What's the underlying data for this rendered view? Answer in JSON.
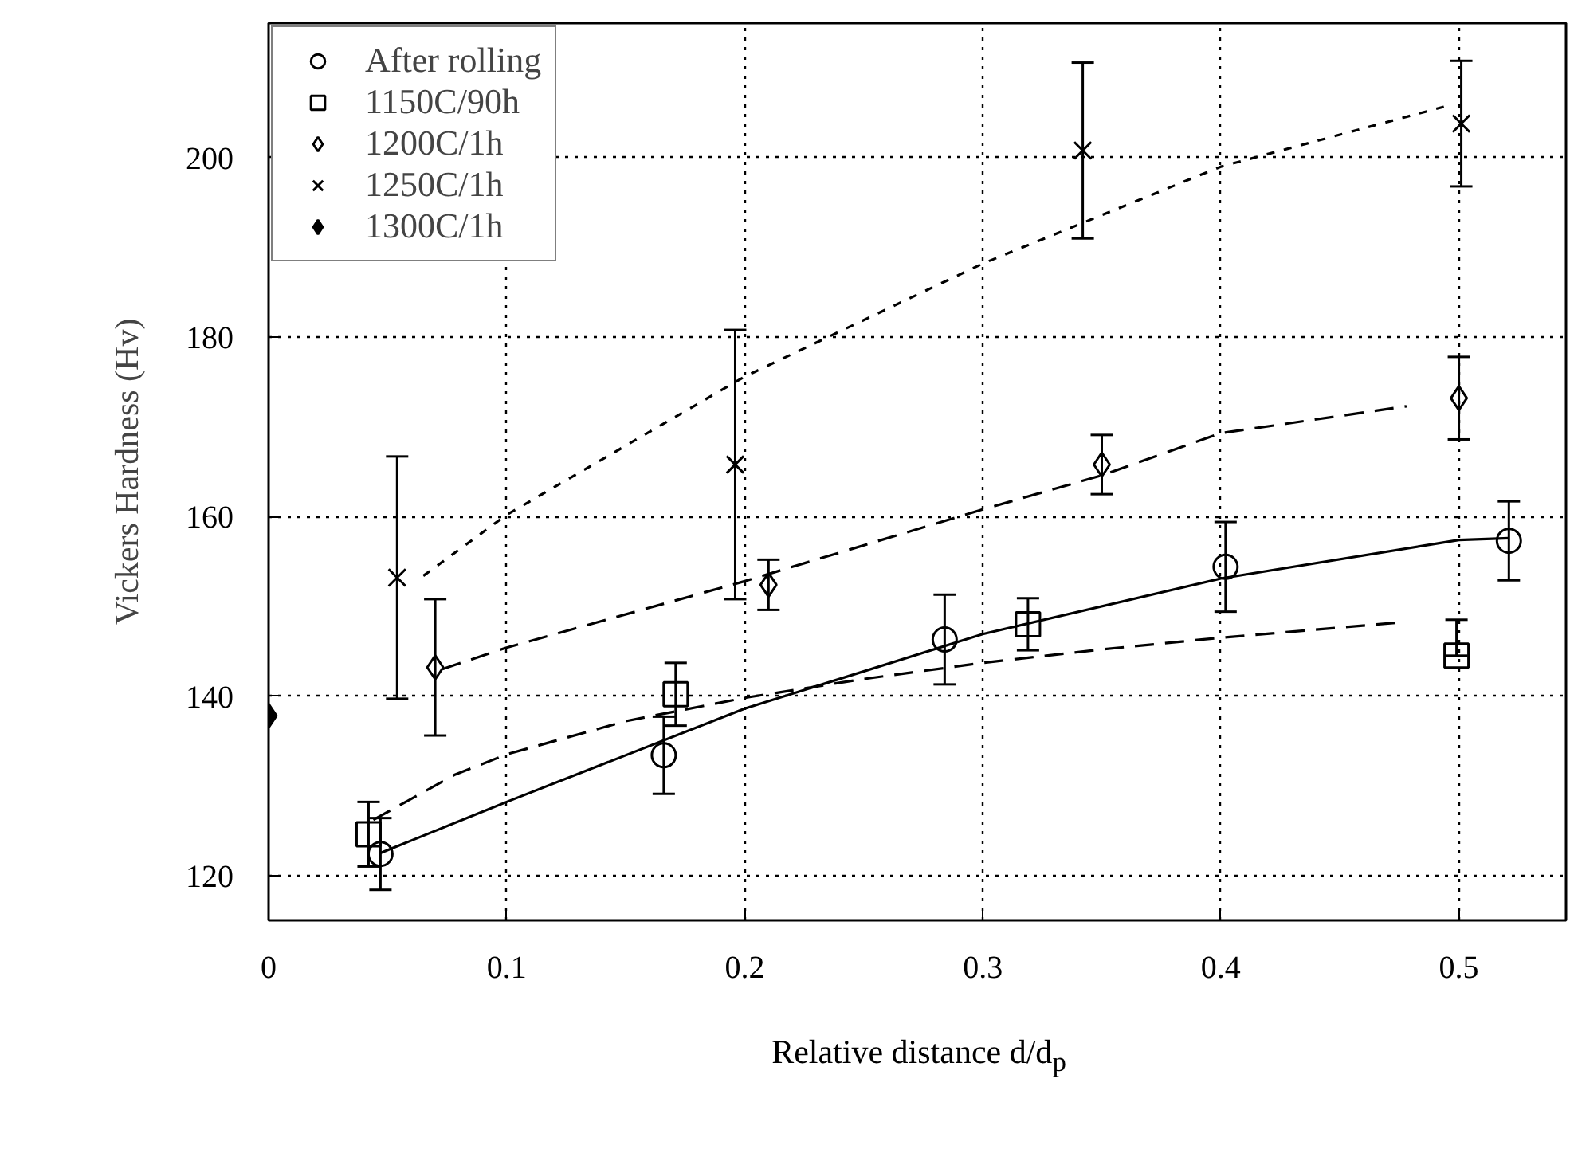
{
  "chart_data": {
    "type": "scatter",
    "xlabel": "Relative distance d/d$_{p}$",
    "ylabel": "Vickers Hardness (Hv)",
    "xlim": [
      0,
      0.545
    ],
    "ylim": [
      115,
      215
    ],
    "xticks": [
      0,
      0.1,
      0.2,
      0.3,
      0.4,
      0.5
    ],
    "yticks": [
      120,
      140,
      160,
      180,
      200
    ],
    "grid": true,
    "legend": "top left",
    "series": [
      {
        "name": "After rolling",
        "marker": "circle",
        "x": [
          0.047,
          0.166,
          0.284,
          0.402,
          0.521
        ],
        "values": [
          122.4,
          133.4,
          146.3,
          154.4,
          157.3
        ],
        "errors": [
          4,
          4.3,
          5,
          5,
          4.4
        ]
      },
      {
        "type": "line",
        "line_style": "solid",
        "x": [
          0.047,
          0.1,
          0.2,
          0.3,
          0.4,
          0.5,
          0.521
        ],
        "values": [
          122.5,
          128.2,
          138.6,
          146.9,
          153.1,
          157.4,
          157.6
        ]
      },
      {
        "name": "1150C/90h",
        "marker": "square",
        "x": [
          0.042,
          0.171,
          0.319,
          0.499
        ],
        "values": [
          124.6,
          140.2,
          148.0,
          144.5
        ],
        "errors": [
          3.6,
          3.5,
          2.9,
          [
            144.5,
            148.5
          ]
        ]
      },
      {
        "type": "line",
        "line_style": "dashed",
        "x": [
          0.044,
          0.078,
          0.1,
          0.15,
          0.2,
          0.25,
          0.3,
          0.35,
          0.4,
          0.475
        ],
        "values": [
          126.2,
          131.2,
          133.5,
          137.2,
          139.8,
          141.9,
          143.7,
          145.2,
          146.5,
          148.2
        ]
      },
      {
        "name": "1200C/1h",
        "marker": "diamond",
        "x": [
          0.07,
          0.21,
          0.35,
          0.5
        ],
        "values": [
          143.2,
          152.4,
          165.8,
          173.2
        ],
        "errors": [
          7.6,
          2.8,
          3.3,
          4.6
        ]
      },
      {
        "type": "line",
        "line_style": "dashed",
        "x": [
          0.073,
          0.1,
          0.2,
          0.3,
          0.35,
          0.4,
          0.478
        ],
        "values": [
          143.0,
          145.4,
          152.8,
          160.8,
          164.6,
          169.3,
          172.3
        ]
      },
      {
        "name": "1250C/1h",
        "marker": "cross",
        "x": [
          0.054,
          0.196,
          0.342,
          0.501
        ],
        "values": [
          153.2,
          165.8,
          200.8,
          203.8
        ],
        "errors": [
          13.5,
          15,
          9.8,
          7
        ]
      },
      {
        "type": "line",
        "line_style": "dotted",
        "x": [
          0.065,
          0.1,
          0.2,
          0.3,
          0.4,
          0.494
        ],
        "values": [
          153.4,
          160.2,
          175.6,
          188.2,
          199.0,
          205.7
        ]
      },
      {
        "name": "1300C/1h",
        "marker": "diamond",
        "color": "#000000",
        "x": [
          0
        ],
        "values": [
          137.8
        ]
      }
    ]
  }
}
